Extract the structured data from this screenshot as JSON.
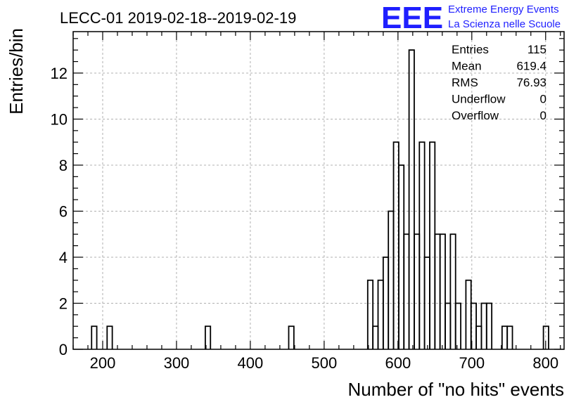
{
  "chart_data": {
    "type": "histogram",
    "title": "LECC-01 2019-02-18--2019-02-19",
    "xlabel": "Number of \"no hits\" events",
    "ylabel": "Entries/bin",
    "xlim": [
      160,
      825
    ],
    "ylim": [
      0,
      13.8
    ],
    "grid": true,
    "x_ticks": [
      200,
      300,
      400,
      500,
      600,
      700,
      800
    ],
    "y_ticks": [
      0,
      2,
      4,
      6,
      8,
      10,
      12
    ],
    "bins": [
      {
        "x0": 185,
        "x1": 192,
        "count": 1
      },
      {
        "x0": 206,
        "x1": 213,
        "count": 1
      },
      {
        "x0": 339,
        "x1": 346,
        "count": 1
      },
      {
        "x0": 452,
        "x1": 459,
        "count": 1
      },
      {
        "x0": 559,
        "x1": 566,
        "count": 3
      },
      {
        "x0": 566,
        "x1": 573,
        "count": 1
      },
      {
        "x0": 573,
        "x1": 580,
        "count": 3
      },
      {
        "x0": 580,
        "x1": 587,
        "count": 4
      },
      {
        "x0": 587,
        "x1": 594,
        "count": 6
      },
      {
        "x0": 594,
        "x1": 601,
        "count": 9
      },
      {
        "x0": 601,
        "x1": 608,
        "count": 8
      },
      {
        "x0": 608,
        "x1": 615,
        "count": 5
      },
      {
        "x0": 615,
        "x1": 622,
        "count": 13
      },
      {
        "x0": 622,
        "x1": 629,
        "count": 5
      },
      {
        "x0": 629,
        "x1": 636,
        "count": 9
      },
      {
        "x0": 636,
        "x1": 643,
        "count": 4
      },
      {
        "x0": 643,
        "x1": 650,
        "count": 9
      },
      {
        "x0": 650,
        "x1": 657,
        "count": 5
      },
      {
        "x0": 657,
        "x1": 664,
        "count": 5
      },
      {
        "x0": 664,
        "x1": 671,
        "count": 2
      },
      {
        "x0": 671,
        "x1": 678,
        "count": 5
      },
      {
        "x0": 678,
        "x1": 685,
        "count": 2
      },
      {
        "x0": 692,
        "x1": 699,
        "count": 3
      },
      {
        "x0": 699,
        "x1": 706,
        "count": 2
      },
      {
        "x0": 706,
        "x1": 713,
        "count": 1
      },
      {
        "x0": 713,
        "x1": 720,
        "count": 2
      },
      {
        "x0": 720,
        "x1": 727,
        "count": 2
      },
      {
        "x0": 741,
        "x1": 748,
        "count": 1
      },
      {
        "x0": 748,
        "x1": 755,
        "count": 1
      },
      {
        "x0": 797,
        "x1": 804,
        "count": 1
      }
    ],
    "stats": [
      {
        "label": "Entries",
        "value": "115"
      },
      {
        "label": "Mean",
        "value": "619.4"
      },
      {
        "label": "RMS",
        "value": "76.93"
      },
      {
        "label": "Underflow",
        "value": "0"
      },
      {
        "label": "Overflow",
        "value": "0"
      }
    ]
  },
  "logo": {
    "mark": "EEE",
    "line1": "Extreme Energy Events",
    "line2": "La Scienza nelle Scuole",
    "color": "#1f1fff"
  }
}
